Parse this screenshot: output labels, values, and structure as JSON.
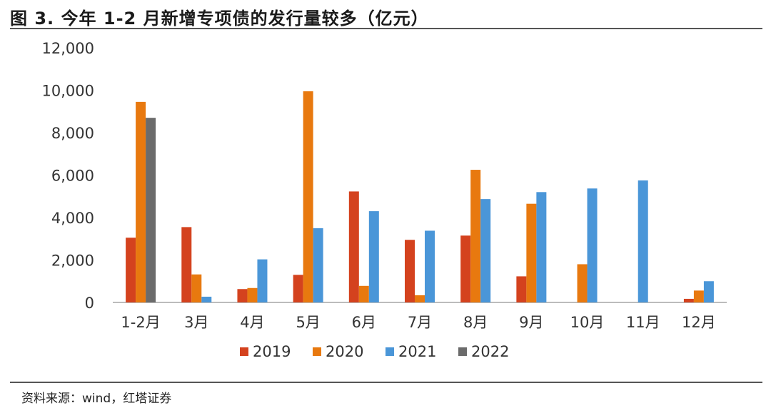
{
  "header": {
    "title": "图 3. 今年 1-2 月新增专项债的发行量较多（亿元）"
  },
  "footer": {
    "source": "资料来源：wind，红塔证券"
  },
  "chart_data": {
    "type": "bar",
    "title": "图 3. 今年 1-2 月新增专项债的发行量较多（亿元）",
    "xlabel": "",
    "ylabel": "",
    "ylim": [
      0,
      12000
    ],
    "yticks": [
      "0",
      "2,000",
      "4,000",
      "6,000",
      "8,000",
      "10,000",
      "12,000"
    ],
    "ytick_values": [
      0,
      2000,
      4000,
      6000,
      8000,
      10000,
      12000
    ],
    "categories": [
      "1-2月",
      "3月",
      "4月",
      "5月",
      "6月",
      "7月",
      "8月",
      "9月",
      "10月",
      "11月",
      "12月"
    ],
    "grid": false,
    "legend_position": "bottom",
    "series": [
      {
        "name": "2019",
        "color": "#d4421e",
        "values": [
          3050,
          3550,
          630,
          1300,
          5230,
          2950,
          3150,
          1230,
          null,
          null,
          170
        ]
      },
      {
        "name": "2020",
        "color": "#e8790f",
        "values": [
          9450,
          1320,
          680,
          9950,
          780,
          340,
          6250,
          4650,
          1800,
          null,
          560
        ]
      },
      {
        "name": "2021",
        "color": "#4a96d8",
        "values": [
          null,
          270,
          2030,
          3500,
          4300,
          3380,
          4870,
          5200,
          5370,
          5750,
          1000
        ]
      },
      {
        "name": "2022",
        "color": "#6b6b6b",
        "values": [
          8700,
          null,
          null,
          null,
          null,
          null,
          null,
          null,
          null,
          null,
          null
        ]
      }
    ]
  }
}
